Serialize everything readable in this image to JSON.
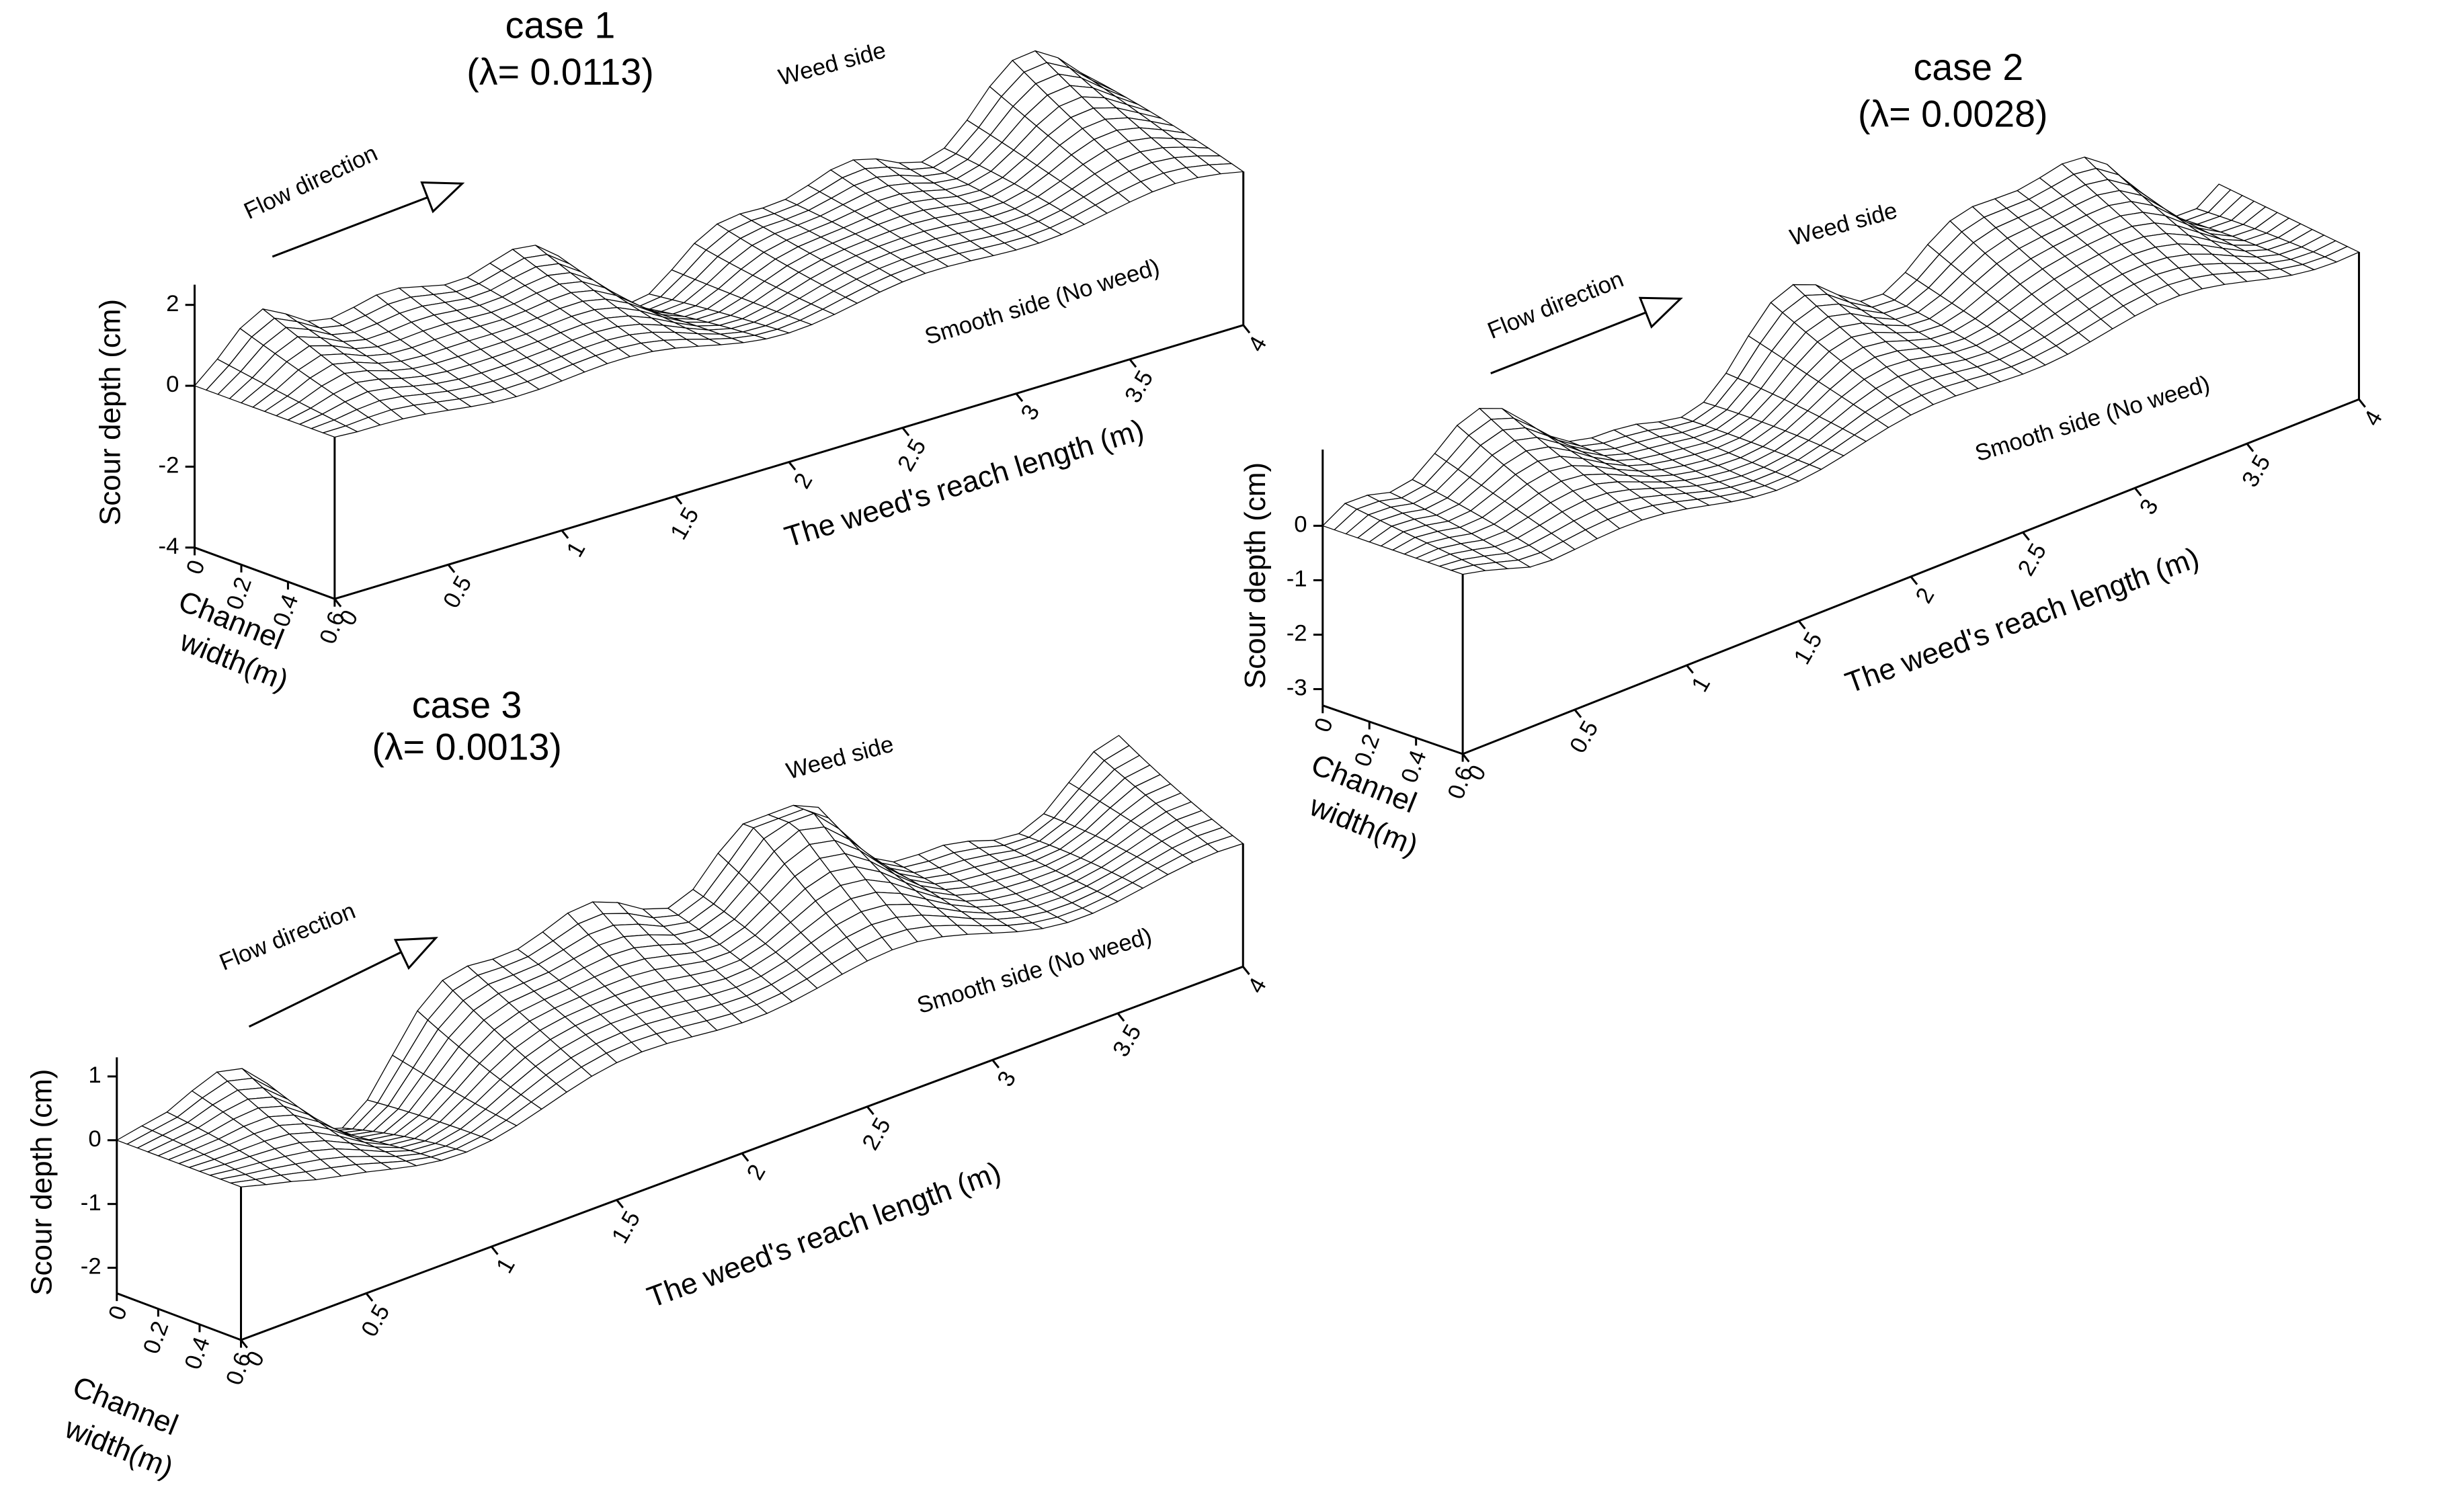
{
  "chart_data": [
    {
      "type": "surface",
      "title": "case 1",
      "subtitle": "(λ= 0.0113)",
      "annotations": [
        "Flow direction",
        "Weed side",
        "Smooth side (No weed)"
      ],
      "xlabel": "The weed's reach length (m)",
      "ylabel": [
        "Channel",
        "width(m)"
      ],
      "zlabel": "Scour depth (cm)",
      "xlim": [
        0,
        4
      ],
      "xticks": [
        0,
        0.5,
        1,
        1.5,
        2,
        2.5,
        3,
        3.5,
        4
      ],
      "ylim": [
        0,
        0.6
      ],
      "yticks": [
        0,
        0.2,
        0.4,
        0.6
      ],
      "zlim": [
        -4,
        2.5
      ],
      "zticks": [
        -4,
        -2,
        0,
        2
      ]
    },
    {
      "type": "surface",
      "title": "case 2",
      "subtitle": "(λ= 0.0028)",
      "annotations": [
        "Flow direction",
        "Weed side",
        "Smooth side (No weed)"
      ],
      "xlabel": "The weed's reach length (m)",
      "ylabel": [
        "Channel",
        "width(m)"
      ],
      "zlabel": "Scour depth (cm)",
      "xlim": [
        0,
        4
      ],
      "xticks": [
        0,
        0.5,
        1,
        1.5,
        2,
        2.5,
        3,
        3.5,
        4
      ],
      "ylim": [
        0,
        0.6
      ],
      "yticks": [
        0,
        0.2,
        0.4,
        0.6
      ],
      "zlim": [
        -3.3,
        1.4
      ],
      "zticks": [
        -3,
        -2,
        -1,
        0
      ]
    },
    {
      "type": "surface",
      "title": "case 3",
      "subtitle": "(λ= 0.0013)",
      "annotations": [
        "Flow direction",
        "Weed side",
        "Smooth side (No weed)"
      ],
      "xlabel": "The weed's reach length (m)",
      "ylabel": [
        "Channel",
        "width(m)"
      ],
      "zlabel": "Scour depth (cm)",
      "xlim": [
        0,
        4
      ],
      "xticks": [
        0,
        0.5,
        1,
        1.5,
        2,
        2.5,
        3,
        3.5,
        4
      ],
      "ylim": [
        0,
        0.6
      ],
      "yticks": [
        0,
        0.2,
        0.4,
        0.6
      ],
      "zlim": [
        -2.4,
        1.3
      ],
      "zticks": [
        -2,
        -1,
        0,
        1
      ]
    }
  ]
}
